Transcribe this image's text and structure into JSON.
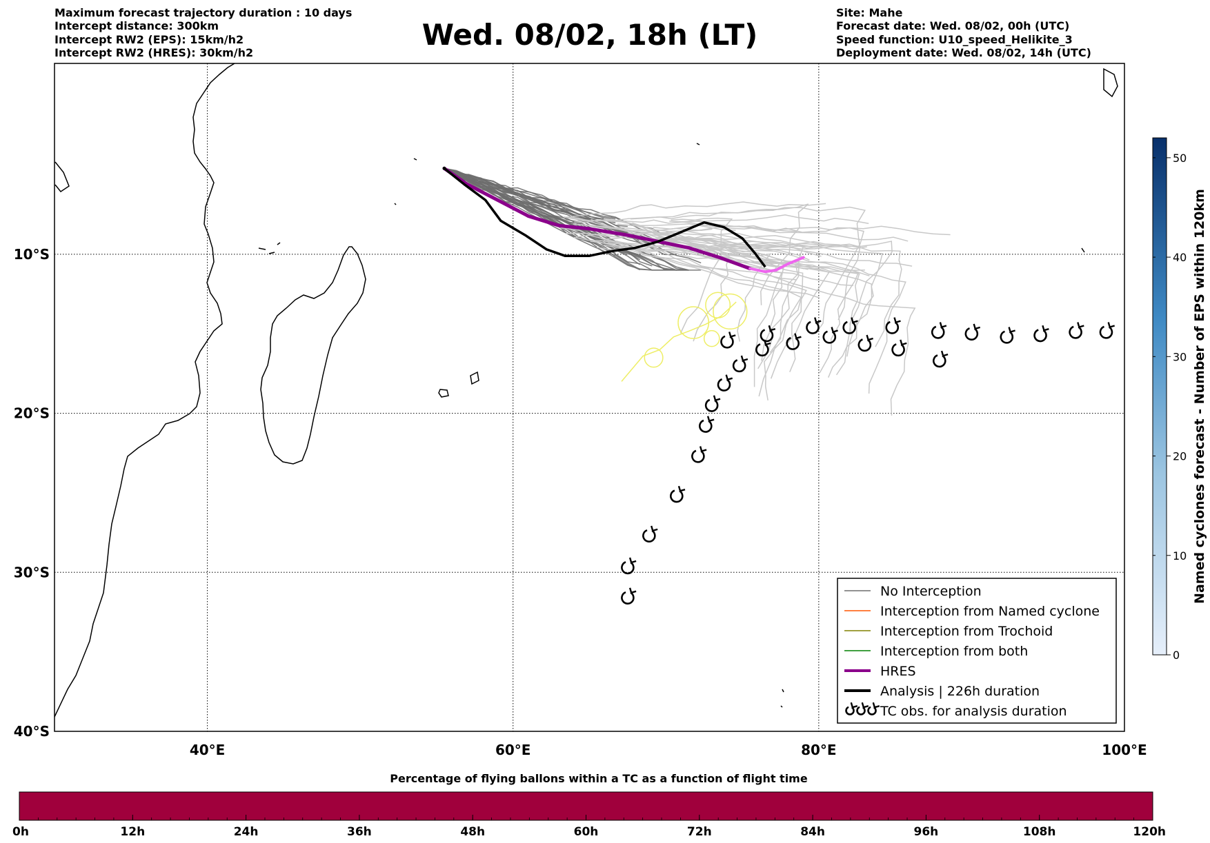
{
  "header": {
    "left_lines": [
      "Maximum forecast trajectory duration : 10 days",
      "Intercept distance: 300km",
      "Intercept RW2 (EPS):  15km/h2",
      "Intercept RW2 (HRES): 30km/h2"
    ],
    "title": "Wed. 08/02, 18h (LT)",
    "right_lines": [
      "Site: Mahe",
      "Forecast date: Wed. 08/02, 00h (UTC)",
      "Speed function: U10_speed_Helikite_3",
      "Deployment date: Wed. 08/02, 14h (UTC)"
    ]
  },
  "map": {
    "lon_range": [
      30,
      100
    ],
    "lat_range": [
      -40,
      2
    ],
    "lon_ticks": [
      {
        "value": 40,
        "label": "40°E"
      },
      {
        "value": 60,
        "label": "60°E"
      },
      {
        "value": 80,
        "label": "80°E"
      },
      {
        "value": 100,
        "label": "100°E"
      }
    ],
    "lat_ticks": [
      {
        "value": -10,
        "label": "10°S"
      },
      {
        "value": -20,
        "label": "20°S"
      },
      {
        "value": -30,
        "label": "30°S"
      },
      {
        "value": -40,
        "label": "40°S"
      }
    ],
    "grid": "dotted",
    "colors": {
      "eps": "#6e6e6e",
      "eps_light": "#c8c8c8",
      "hres": "#8b008b",
      "hres_tail": "#ee66ee",
      "analysis": "#000000",
      "trochoid": "#eeee66",
      "named_cyclone": "#ff5500",
      "trochoid_intercept": "#808000",
      "both": "#008000"
    },
    "site": {
      "name": "Mahe",
      "lon": 55.5,
      "lat": -4.6
    },
    "hres_track": [
      [
        55.5,
        -4.6
      ],
      [
        57.0,
        -5.6
      ],
      [
        59.0,
        -6.6
      ],
      [
        61.0,
        -7.6
      ],
      [
        63.0,
        -8.2
      ],
      [
        65.0,
        -8.4
      ],
      [
        67.5,
        -8.8
      ],
      [
        69.5,
        -9.2
      ],
      [
        71.5,
        -9.6
      ],
      [
        73.5,
        -10.2
      ],
      [
        75.5,
        -10.9
      ],
      [
        76.5,
        -11.1
      ],
      [
        77.2,
        -11.0
      ],
      [
        78.0,
        -10.6
      ],
      [
        79.0,
        -10.2
      ]
    ],
    "analysis_track": [
      [
        55.5,
        -4.6
      ],
      [
        56.8,
        -5.6
      ],
      [
        58.2,
        -6.6
      ],
      [
        59.2,
        -7.9
      ],
      [
        60.8,
        -8.8
      ],
      [
        62.2,
        -9.7
      ],
      [
        63.4,
        -10.1
      ],
      [
        65.0,
        -10.1
      ],
      [
        66.5,
        -9.8
      ],
      [
        68.0,
        -9.6
      ],
      [
        69.5,
        -9.2
      ],
      [
        71.0,
        -8.6
      ],
      [
        72.5,
        -8.0
      ],
      [
        73.8,
        -8.3
      ],
      [
        75.0,
        -9.0
      ],
      [
        75.8,
        -9.9
      ],
      [
        76.5,
        -10.8
      ]
    ],
    "tc_obs": [
      [
        67.5,
        -31.6
      ],
      [
        67.5,
        -29.7
      ],
      [
        68.9,
        -27.7
      ],
      [
        70.7,
        -25.2
      ],
      [
        72.1,
        -22.7
      ],
      [
        72.6,
        -20.8
      ],
      [
        73.0,
        -19.5
      ],
      [
        73.8,
        -18.2
      ],
      [
        74.8,
        -17.0
      ],
      [
        76.3,
        -16.0
      ],
      [
        74.0,
        -15.5
      ],
      [
        76.6,
        -15.1
      ],
      [
        78.3,
        -15.6
      ],
      [
        79.6,
        -14.6
      ],
      [
        80.7,
        -15.2
      ],
      [
        82.0,
        -14.6
      ],
      [
        83.0,
        -15.7
      ],
      [
        84.8,
        -14.6
      ],
      [
        85.2,
        -16.0
      ],
      [
        87.8,
        -14.9
      ],
      [
        87.9,
        -16.7
      ],
      [
        90.0,
        -15.0
      ],
      [
        92.3,
        -15.2
      ],
      [
        94.5,
        -15.1
      ],
      [
        96.8,
        -14.9
      ],
      [
        98.8,
        -14.9
      ]
    ]
  },
  "legend": {
    "items": [
      {
        "label": "No Interception",
        "style": "eps"
      },
      {
        "label": "Interception from Named cyclone",
        "style": "named_cyclone"
      },
      {
        "label": "Interception from Trochoid",
        "style": "trochoid_intercept"
      },
      {
        "label": "Interception from both",
        "style": "both"
      },
      {
        "label": "HRES",
        "style": "hres"
      },
      {
        "label": "Analysis | 226h duration",
        "style": "analysis"
      },
      {
        "label": "TC obs. for analysis duration",
        "style": "tc_obs"
      }
    ]
  },
  "colorbar_right": {
    "label": "Named cyclones forecast - Number of EPS within 120km",
    "min": 0,
    "max": 52,
    "ticks": [
      0,
      10,
      20,
      30,
      40,
      50
    ],
    "color_low": "#e6effa",
    "color_high": "#08306b"
  },
  "colorbar_bottom": {
    "title": "Percentage of flying ballons within a TC as a function of flight time",
    "fill_color": "#a0003c",
    "range_hours": [
      0,
      120
    ],
    "ticks": [
      "0h",
      "12h",
      "24h",
      "36h",
      "48h",
      "60h",
      "72h",
      "84h",
      "96h",
      "108h",
      "120h"
    ]
  }
}
